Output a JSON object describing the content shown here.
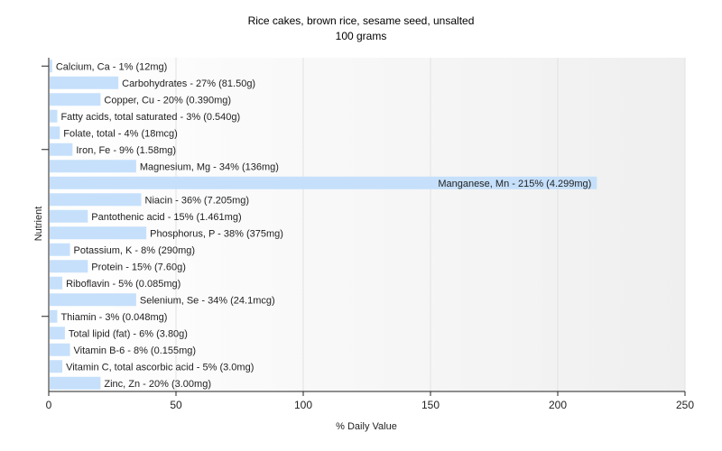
{
  "chart_data": {
    "type": "bar",
    "orientation": "horizontal",
    "title": "Rice cakes, brown rice, sesame seed, unsalted",
    "subtitle": "100 grams",
    "xlabel": "% Daily Value",
    "ylabel": "Nutrient",
    "xlim": [
      0,
      250
    ],
    "xticks": [
      0,
      50,
      100,
      150,
      200,
      250
    ],
    "grid": true,
    "bar_color": "#c6e0fb",
    "categories": [
      "Calcium, Ca",
      "Carbohydrates",
      "Copper, Cu",
      "Fatty acids, total saturated",
      "Folate, total",
      "Iron, Fe",
      "Magnesium, Mg",
      "Manganese, Mn",
      "Niacin",
      "Pantothenic acid",
      "Phosphorus, P",
      "Potassium, K",
      "Protein",
      "Riboflavin",
      "Selenium, Se",
      "Thiamin",
      "Total lipid (fat)",
      "Vitamin B-6",
      "Vitamin C, total ascorbic acid",
      "Zinc, Zn"
    ],
    "values": [
      1,
      27,
      20,
      3,
      4,
      9,
      34,
      215,
      36,
      15,
      38,
      8,
      15,
      5,
      34,
      3,
      6,
      8,
      5,
      20
    ],
    "labels": [
      "Calcium, Ca - 1% (12mg)",
      "Carbohydrates - 27% (81.50g)",
      "Copper, Cu - 20% (0.390mg)",
      "Fatty acids, total saturated - 3% (0.540g)",
      "Folate, total - 4% (18mcg)",
      "Iron, Fe - 9% (1.58mg)",
      "Magnesium, Mg - 34% (136mg)",
      "Manganese, Mn - 215% (4.299mg)",
      "Niacin - 36% (7.205mg)",
      "Pantothenic acid - 15% (1.461mg)",
      "Phosphorus, P - 38% (375mg)",
      "Potassium, K - 8% (290mg)",
      "Protein - 15% (7.60g)",
      "Riboflavin - 5% (0.085mg)",
      "Selenium, Se - 34% (24.1mcg)",
      "Thiamin - 3% (0.048mg)",
      "Total lipid (fat) - 6% (3.80g)",
      "Vitamin B-6 - 8% (0.155mg)",
      "Vitamin C, total ascorbic acid - 5% (3.0mg)",
      "Zinc, Zn - 20% (3.00mg)"
    ]
  }
}
